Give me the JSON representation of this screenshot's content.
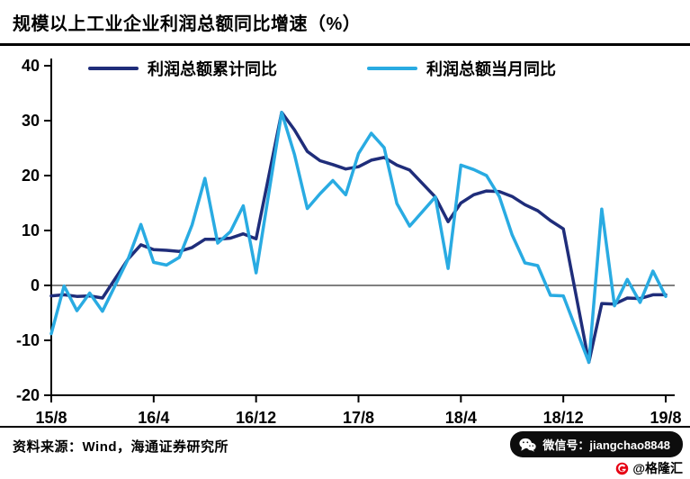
{
  "title": "规模以上工业企业利润总额同比增速（%）",
  "legend": [
    "利润总额累计同比",
    "利润总额当月同比"
  ],
  "footer": {
    "source": "资料来源：Wind，海通证券研究所"
  },
  "watermark": {
    "wechat_label": "微信号：jiangchao8848",
    "brand": "@格隆汇"
  },
  "colors": {
    "cumulative": "#1f2d7a",
    "monthly": "#29abe2",
    "axis": "#000000"
  },
  "chart_data": {
    "type": "line",
    "title": "规模以上工业企业利润总额同比增速（%）",
    "xlabel": "",
    "ylabel": "",
    "ylim": [
      -20,
      40
    ],
    "yticks": [
      40,
      30,
      20,
      10,
      0,
      -10,
      -20
    ],
    "grid": false,
    "legend_position": "top",
    "x": [
      "15/8",
      "15/9",
      "15/10",
      "15/11",
      "15/12",
      "16/1",
      "16/2",
      "16/3",
      "16/4",
      "16/5",
      "16/6",
      "16/7",
      "16/8",
      "16/9",
      "16/10",
      "16/11",
      "16/12",
      "17/1",
      "17/2",
      "17/3",
      "17/4",
      "17/5",
      "17/6",
      "17/7",
      "17/8",
      "17/9",
      "17/10",
      "17/11",
      "17/12",
      "18/1",
      "18/2",
      "18/3",
      "18/4",
      "18/5",
      "18/6",
      "18/7",
      "18/8",
      "18/9",
      "18/10",
      "18/11",
      "18/12",
      "19/1",
      "19/2",
      "19/3",
      "19/4",
      "19/5",
      "19/6",
      "19/7",
      "19/8"
    ],
    "xticks": [
      {
        "label": "15/8",
        "index": 0
      },
      {
        "label": "16/4",
        "index": 8
      },
      {
        "label": "16/12",
        "index": 16
      },
      {
        "label": "17/8",
        "index": 24
      },
      {
        "label": "18/4",
        "index": 32
      },
      {
        "label": "18/12",
        "index": 40
      },
      {
        "label": "19/8",
        "index": 48
      }
    ],
    "series": [
      {
        "name": "利润总额累计同比",
        "color": "#1f2d7a",
        "values": [
          -1.9,
          -1.7,
          -2.0,
          -1.9,
          -2.3,
          null,
          4.8,
          7.4,
          6.5,
          6.4,
          6.2,
          6.9,
          8.4,
          8.4,
          8.6,
          9.4,
          8.5,
          null,
          31.5,
          28.3,
          24.4,
          22.7,
          22.0,
          21.2,
          21.6,
          22.8,
          23.3,
          21.9,
          21.0,
          null,
          16.1,
          11.6,
          15.0,
          16.5,
          17.2,
          17.1,
          16.2,
          14.7,
          13.6,
          11.8,
          10.3,
          null,
          -14.0,
          -3.3,
          -3.4,
          -2.3,
          -2.4,
          -1.7,
          -1.7
        ]
      },
      {
        "name": "利润总额当月同比",
        "color": "#29abe2",
        "values": [
          -8.8,
          -0.1,
          -4.6,
          -1.4,
          -4.7,
          null,
          4.8,
          11.1,
          4.2,
          3.7,
          5.1,
          11.0,
          19.5,
          7.7,
          9.8,
          14.5,
          2.3,
          null,
          31.5,
          23.8,
          14.0,
          16.7,
          19.1,
          16.5,
          24.0,
          27.7,
          25.1,
          14.9,
          10.8,
          null,
          16.1,
          3.1,
          21.9,
          21.1,
          20.0,
          16.2,
          9.2,
          4.1,
          3.6,
          -1.8,
          -1.9,
          null,
          -14.0,
          13.9,
          -3.7,
          1.1,
          -3.1,
          2.6,
          -2.0
        ]
      }
    ]
  }
}
